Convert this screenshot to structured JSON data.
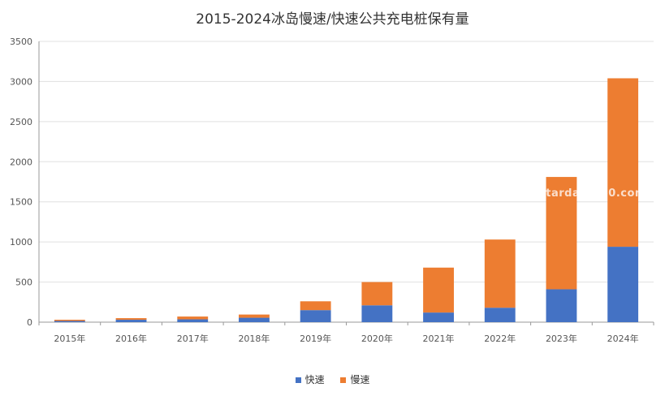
{
  "chart_data": {
    "type": "bar",
    "stacked": true,
    "title": "2015-2024冰岛慢速/快速公共充电桩保有量",
    "categories": [
      "2015年",
      "2016年",
      "2017年",
      "2018年",
      "2019年",
      "2020年",
      "2021年",
      "2022年",
      "2023年",
      "2024年"
    ],
    "series": [
      {
        "name": "快速",
        "color": "#4472C4",
        "values": [
          15,
          30,
          35,
          55,
          150,
          210,
          120,
          180,
          410,
          940
        ]
      },
      {
        "name": "慢速",
        "color": "#ED7D31",
        "values": [
          15,
          20,
          35,
          40,
          110,
          290,
          560,
          850,
          1400,
          2100
        ]
      }
    ],
    "ylim": [
      0,
      3500
    ],
    "yticks": [
      0,
      500,
      1000,
      1500,
      2000,
      2500,
      3000,
      3500
    ],
    "grid": true,
    "legend_position": "bottom"
  },
  "watermark": "stardata360.com"
}
